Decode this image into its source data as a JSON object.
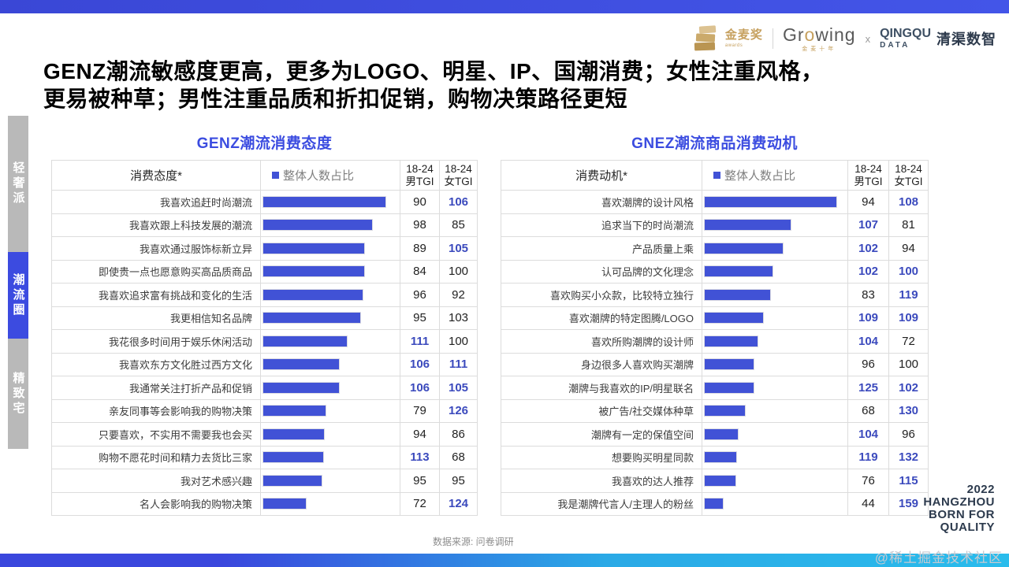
{
  "page": {
    "title_line1": "GENZ潮流敏感度更高，更多为LOGO、明星、IP、国潮消费；女性注重风格，",
    "title_line2": "更易被种草；男性注重品质和折扣促销，购物决策路径更短",
    "source_note": "数据来源: 问卷调研",
    "watermark": "@稀土掘金技术社区",
    "year_badge": {
      "l1": "2022",
      "l2": "HANGZHOU",
      "l3": "BORN FOR",
      "l4": "QUALITY"
    }
  },
  "header_logos": {
    "jinmai": "金麦奖",
    "jinmai_sub": "awards",
    "growing_g1": "Gr",
    "growing_gold": "o",
    "growing_g2": "wing",
    "growing_sub": "金麦十年",
    "x": "x",
    "qingqu_l1": "QINGQU",
    "qingqu_l2": "DATA",
    "qingqu_name": "清渠数智"
  },
  "sidebar": {
    "items": [
      {
        "label": "轻奢派",
        "active": false
      },
      {
        "label": "潮流圈",
        "active": true
      },
      {
        "label": "精致宅",
        "active": false
      }
    ]
  },
  "colors": {
    "accent_blue": "#3c4be0",
    "bar_blue": "#4152d6",
    "highlight_blue": "#3b4abd",
    "cyan": "#2abcec",
    "gold": "#c6a05e",
    "sidebar_gray": "#b9b9b9"
  },
  "chart_data": [
    {
      "type": "bar",
      "title": "GENZ潮流消费态度",
      "headers": {
        "label": "消费态度*",
        "bar": "整体人数占比",
        "male_l1": "18-24",
        "male_l2": "男TGI",
        "female_l1": "18-24",
        "female_l2": "女TGI"
      },
      "rows": [
        {
          "label": "我喜欢追赶时尚潮流",
          "bar_pct": 92,
          "male": "90",
          "male_hl": false,
          "female": "106",
          "female_hl": true
        },
        {
          "label": "我喜欢跟上科技发展的潮流",
          "bar_pct": 82,
          "male": "98",
          "male_hl": false,
          "female": "85",
          "female_hl": false
        },
        {
          "label": "我喜欢通过服饰标新立异",
          "bar_pct": 76,
          "male": "89",
          "male_hl": false,
          "female": "105",
          "female_hl": true
        },
        {
          "label": "即使贵一点也愿意购买高品质商品",
          "bar_pct": 76,
          "male": "84",
          "male_hl": false,
          "female": "100",
          "female_hl": false
        },
        {
          "label": "我喜欢追求富有挑战和变化的生活",
          "bar_pct": 75,
          "male": "96",
          "male_hl": false,
          "female": "92",
          "female_hl": false
        },
        {
          "label": "我更相信知名品牌",
          "bar_pct": 73,
          "male": "95",
          "male_hl": false,
          "female": "103",
          "female_hl": false
        },
        {
          "label": "我花很多时间用于娱乐休闲活动",
          "bar_pct": 63,
          "male": "111",
          "male_hl": true,
          "female": "100",
          "female_hl": false
        },
        {
          "label": "我喜欢东方文化胜过西方文化",
          "bar_pct": 57,
          "male": "106",
          "male_hl": true,
          "female": "111",
          "female_hl": true
        },
        {
          "label": "我通常关注打折产品和促销",
          "bar_pct": 57,
          "male": "106",
          "male_hl": true,
          "female": "105",
          "female_hl": true
        },
        {
          "label": "亲友同事等会影响我的购物决策",
          "bar_pct": 47,
          "male": "79",
          "male_hl": false,
          "female": "126",
          "female_hl": true
        },
        {
          "label": "只要喜欢，不实用不需要我也会买",
          "bar_pct": 46,
          "male": "94",
          "male_hl": false,
          "female": "86",
          "female_hl": false
        },
        {
          "label": "购物不愿花时间和精力去货比三家",
          "bar_pct": 45,
          "male": "113",
          "male_hl": true,
          "female": "68",
          "female_hl": false
        },
        {
          "label": "我对艺术感兴趣",
          "bar_pct": 44,
          "male": "95",
          "male_hl": false,
          "female": "95",
          "female_hl": false
        },
        {
          "label": "名人会影响我的购物决策",
          "bar_pct": 32,
          "male": "72",
          "male_hl": false,
          "female": "124",
          "female_hl": true
        }
      ]
    },
    {
      "type": "bar",
      "title": "GNEZ潮流商品消费动机",
      "headers": {
        "label": "消费动机*",
        "bar": "整体人数占比",
        "male_l1": "18-24",
        "male_l2": "男TGI",
        "female_l1": "18-24",
        "female_l2": "女TGI"
      },
      "rows": [
        {
          "label": "喜欢潮牌的设计风格",
          "bar_pct": 95,
          "male": "94",
          "male_hl": false,
          "female": "108",
          "female_hl": true
        },
        {
          "label": "追求当下的时尚潮流",
          "bar_pct": 62,
          "male": "107",
          "male_hl": true,
          "female": "81",
          "female_hl": false
        },
        {
          "label": "产品质量上乘",
          "bar_pct": 56,
          "male": "102",
          "male_hl": true,
          "female": "94",
          "female_hl": false
        },
        {
          "label": "认可品牌的文化理念",
          "bar_pct": 49,
          "male": "102",
          "male_hl": true,
          "female": "100",
          "female_hl": true
        },
        {
          "label": "喜欢购买小众款，比较特立独行",
          "bar_pct": 47,
          "male": "83",
          "male_hl": false,
          "female": "119",
          "female_hl": true
        },
        {
          "label": "喜欢潮牌的特定图腾/LOGO",
          "bar_pct": 42,
          "male": "109",
          "male_hl": true,
          "female": "109",
          "female_hl": true
        },
        {
          "label": "喜欢所购潮牌的设计师",
          "bar_pct": 38,
          "male": "104",
          "male_hl": true,
          "female": "72",
          "female_hl": false
        },
        {
          "label": "身边很多人喜欢购买潮牌",
          "bar_pct": 35,
          "male": "96",
          "male_hl": false,
          "female": "100",
          "female_hl": false
        },
        {
          "label": "潮牌与我喜欢的IP/明星联名",
          "bar_pct": 35,
          "male": "125",
          "male_hl": true,
          "female": "102",
          "female_hl": true
        },
        {
          "label": "被广告/社交媒体种草",
          "bar_pct": 29,
          "male": "68",
          "male_hl": false,
          "female": "130",
          "female_hl": true
        },
        {
          "label": "潮牌有一定的保值空间",
          "bar_pct": 24,
          "male": "104",
          "male_hl": true,
          "female": "96",
          "female_hl": false
        },
        {
          "label": "想要购买明星同款",
          "bar_pct": 23,
          "male": "119",
          "male_hl": true,
          "female": "132",
          "female_hl": true
        },
        {
          "label": "我喜欢的达人推荐",
          "bar_pct": 22,
          "male": "76",
          "male_hl": false,
          "female": "115",
          "female_hl": true
        },
        {
          "label": "我是潮牌代言人/主理人的粉丝",
          "bar_pct": 13,
          "male": "44",
          "male_hl": false,
          "female": "159",
          "female_hl": true
        }
      ]
    }
  ]
}
